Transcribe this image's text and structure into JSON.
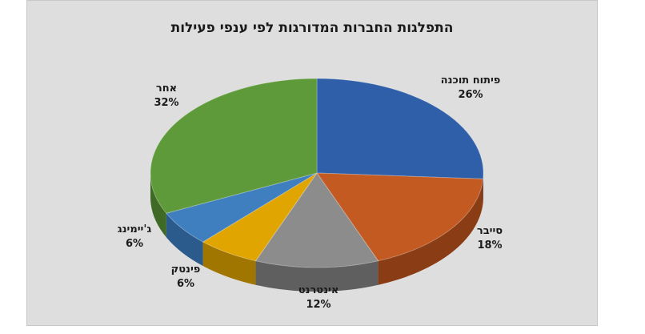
{
  "chart_data": {
    "type": "pie",
    "title": "התפלגות החברות המדורגות לפי ענפי פעילות",
    "slices": [
      {
        "label": "פיתוח תוכנה",
        "value": 26,
        "value_label": "26%",
        "color": "#2f5fa8",
        "side": "#1f4379"
      },
      {
        "label": "סייבר",
        "value": 18,
        "value_label": "18%",
        "color": "#c25a22",
        "side": "#8a3d14"
      },
      {
        "label": "אינטרנט",
        "value": 12,
        "value_label": "12%",
        "color": "#8c8c8c",
        "side": "#5f5f5f"
      },
      {
        "label": "פינטק",
        "value": 6,
        "value_label": "6%",
        "color": "#e0a500",
        "side": "#a07600"
      },
      {
        "label": "ג'יימינג",
        "value": 6,
        "value_label": "6%",
        "color": "#3f7fc0",
        "side": "#2b5b8c"
      },
      {
        "label": "אחר",
        "value": 32,
        "value_label": "32%",
        "color": "#5f9a3a",
        "side": "#3f6a25"
      }
    ]
  }
}
